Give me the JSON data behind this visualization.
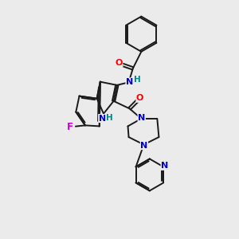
{
  "background_color": "#ebebeb",
  "bond_color": "#1a1a1a",
  "atom_colors": {
    "O": "#ff0000",
    "N": "#0000cc",
    "F": "#cc00cc",
    "H_label": "#008888",
    "C": "#1a1a1a"
  },
  "figsize": [
    3.0,
    3.0
  ],
  "dpi": 100,
  "lw": 1.4,
  "fs": 7.5
}
